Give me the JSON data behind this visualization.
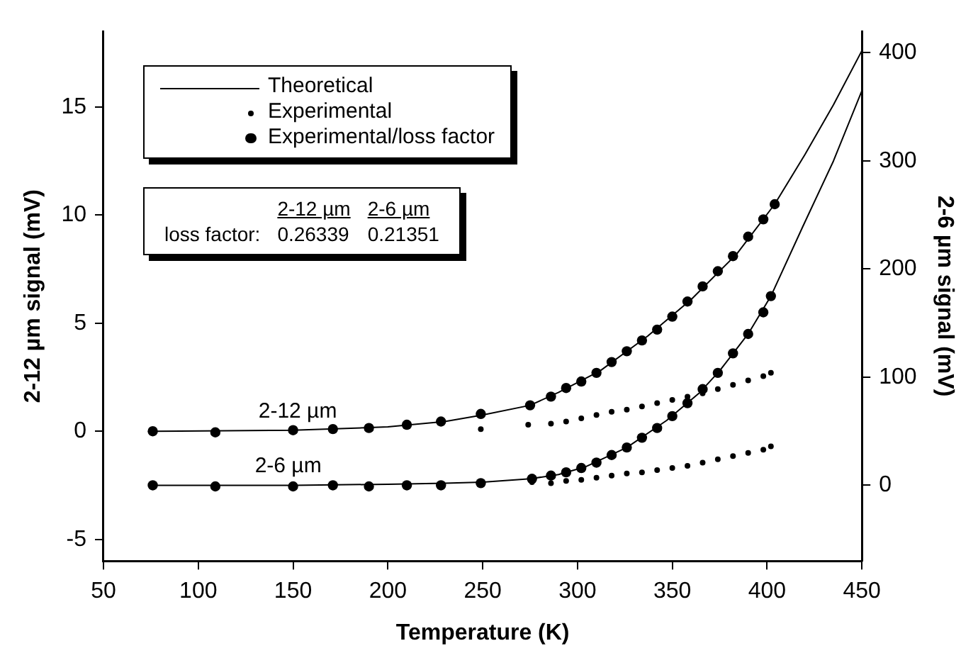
{
  "chart_data": {
    "type": "line",
    "xlabel": "Temperature (K)",
    "ylabel": "2-12 µm signal (mV)",
    "y2label": "2-6 µm signal (mV)",
    "xlim": [
      50,
      450
    ],
    "xticks": [
      50,
      100,
      150,
      200,
      250,
      300,
      350,
      400,
      450
    ],
    "ylim": [
      -6,
      18.5
    ],
    "yticks": [
      -5,
      0,
      5,
      10,
      15
    ],
    "y2lim": [
      -70,
      420
    ],
    "y2ticks": [
      0,
      100,
      200,
      300,
      400
    ],
    "legend": "top left",
    "annotations": [
      {
        "text": "2-12 µm",
        "x": 130,
        "y": 0
      },
      {
        "text": "2-6 µm",
        "x": 125,
        "y": -2.5
      },
      "2-12 µm",
      "2-6 µm",
      "loss factor:",
      "0.26339",
      "0.21351"
    ],
    "series": [
      {
        "name": "Theoretical",
        "type": "line",
        "color": "#000000",
        "x": [
          76,
          150,
          200,
          230,
          250,
          275,
          290,
          312,
          337,
          360,
          384,
          404,
          420,
          435,
          450
        ],
        "values": [
          0,
          0.05,
          0.2,
          0.45,
          0.75,
          1.2,
          1.8,
          2.8,
          4.4,
          6.1,
          8.2,
          10.5,
          12.8,
          15.1,
          17.6
        ]
      },
      {
        "name": "Experimental",
        "type": "scatter",
        "color": "#000000",
        "x": [
          249,
          274,
          286,
          294,
          302,
          310,
          318,
          326,
          334,
          342,
          350,
          358,
          366,
          374,
          382,
          390,
          398,
          402
        ],
        "values": [
          0.1,
          0.3,
          0.35,
          0.45,
          0.6,
          0.75,
          0.9,
          1.0,
          1.15,
          1.3,
          1.45,
          1.6,
          1.75,
          1.95,
          2.15,
          2.35,
          2.55,
          2.7
        ]
      },
      {
        "name": "Experimental/loss factor",
        "type": "scatter",
        "color": "#000000",
        "x": [
          76,
          109,
          150,
          171,
          190,
          210,
          228,
          249,
          275,
          286,
          294,
          302,
          310,
          318,
          326,
          334,
          342,
          350,
          358,
          366,
          374,
          382,
          390,
          398,
          404
        ],
        "values": [
          0,
          -0.05,
          0.05,
          0.1,
          0.15,
          0.3,
          0.45,
          0.8,
          1.2,
          1.6,
          2.0,
          2.3,
          2.7,
          3.2,
          3.7,
          4.2,
          4.7,
          5.3,
          6.0,
          6.7,
          7.4,
          8.1,
          9.0,
          9.8,
          10.5
        ]
      },
      {
        "type": "line",
        "axis": "y2",
        "color": "#000000",
        "x": [
          76,
          150,
          200,
          230,
          250,
          275,
          290,
          304,
          326,
          347,
          364,
          375,
          390,
          402,
          419,
          435,
          450
        ],
        "values": [
          0,
          0,
          1,
          2,
          3,
          6,
          10,
          17,
          35,
          60,
          85,
          106,
          140,
          175,
          240,
          300,
          365
        ]
      },
      {
        "type": "scatter",
        "axis": "y2",
        "color": "#000000",
        "x": [
          276,
          286,
          294,
          302,
          310,
          318,
          326,
          334,
          342,
          350,
          358,
          366,
          374,
          382,
          390,
          398,
          402
        ],
        "values": [
          3,
          2,
          4,
          5,
          7,
          9,
          11,
          12,
          14,
          16,
          18,
          21,
          24,
          27,
          30,
          33,
          36
        ]
      },
      {
        "type": "scatter",
        "axis": "y2",
        "color": "#000000",
        "x": [
          76,
          109,
          150,
          171,
          190,
          210,
          228,
          249,
          276,
          286,
          294,
          302,
          310,
          318,
          326,
          334,
          342,
          350,
          358,
          366,
          374,
          382,
          390,
          398,
          402
        ],
        "values": [
          0,
          -1,
          -1,
          0,
          -1,
          0,
          0,
          2,
          6,
          9,
          12,
          16,
          21,
          28,
          35,
          44,
          53,
          64,
          76,
          89,
          104,
          122,
          140,
          160,
          175
        ]
      }
    ]
  }
}
